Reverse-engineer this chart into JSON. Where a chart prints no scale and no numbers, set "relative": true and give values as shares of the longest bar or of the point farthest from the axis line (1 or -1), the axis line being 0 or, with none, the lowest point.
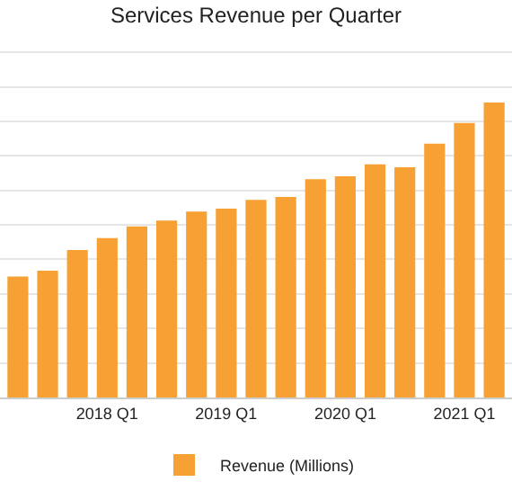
{
  "chart_data": {
    "type": "bar",
    "title": "Services Revenue per Quarter",
    "relative": true,
    "categories": [
      null,
      null,
      null,
      "2018 Q1",
      null,
      null,
      null,
      "2019 Q1",
      null,
      null,
      null,
      "2020 Q1",
      null,
      null,
      null,
      "2021 Q1",
      null
    ],
    "series": [
      {
        "name": "Revenue (Millions)",
        "color": "#f7a033",
        "values": [
          0.41,
          0.43,
          0.5,
          0.54,
          0.58,
          0.6,
          0.63,
          0.64,
          0.67,
          0.68,
          0.74,
          0.75,
          0.79,
          0.78,
          0.86,
          0.93,
          1.0
        ]
      }
    ],
    "grid": "y",
    "legend": "bottom"
  }
}
